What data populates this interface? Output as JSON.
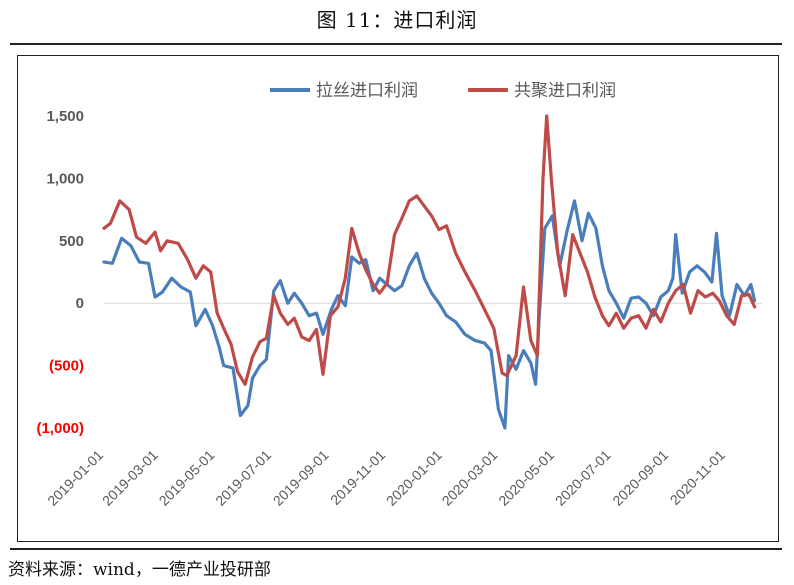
{
  "title": "图 11：进口利润",
  "source": "资料来源：wind，一德产业投研部",
  "colors": {
    "pp": "#4a7ebb",
    "pe": "#be4b48",
    "axis": "#d9d9d9",
    "negative_label": "#ff0000",
    "label": "#595959"
  },
  "chart_data": {
    "type": "line",
    "title": "",
    "xlabel": "",
    "ylabel": "",
    "ylim": [
      -1000,
      1500
    ],
    "yticks": [
      1500,
      1000,
      500,
      0,
      -500,
      -1000
    ],
    "ytick_labels": [
      "1,500",
      "1,000",
      "500",
      "0",
      "(500)",
      "(1,000)"
    ],
    "xticks": [
      "2019-01-01",
      "2019-03-01",
      "2019-05-01",
      "2019-07-01",
      "2019-09-01",
      "2019-11-01",
      "2020-01-01",
      "2020-03-01",
      "2020-05-01",
      "2020-07-01",
      "2020-09-01",
      "2020-11-01"
    ],
    "grid": false,
    "legend": "top",
    "series": [
      {
        "name": "拉丝进口利润",
        "color": "#4a7ebb",
        "points": [
          [
            "2019-01-01",
            330
          ],
          [
            "2019-01-10",
            320
          ],
          [
            "2019-01-20",
            520
          ],
          [
            "2019-01-30",
            460
          ],
          [
            "2019-02-08",
            330
          ],
          [
            "2019-02-18",
            320
          ],
          [
            "2019-02-25",
            50
          ],
          [
            "2019-03-05",
            90
          ],
          [
            "2019-03-15",
            200
          ],
          [
            "2019-03-25",
            130
          ],
          [
            "2019-04-04",
            90
          ],
          [
            "2019-04-10",
            -180
          ],
          [
            "2019-04-20",
            -50
          ],
          [
            "2019-04-28",
            -180
          ],
          [
            "2019-05-05",
            -350
          ],
          [
            "2019-05-10",
            -500
          ],
          [
            "2019-05-20",
            -520
          ],
          [
            "2019-05-28",
            -900
          ],
          [
            "2019-06-05",
            -820
          ],
          [
            "2019-06-10",
            -600
          ],
          [
            "2019-06-18",
            -500
          ],
          [
            "2019-06-25",
            -450
          ],
          [
            "2019-07-03",
            100
          ],
          [
            "2019-07-10",
            180
          ],
          [
            "2019-07-18",
            0
          ],
          [
            "2019-07-25",
            80
          ],
          [
            "2019-08-02",
            0
          ],
          [
            "2019-08-10",
            -100
          ],
          [
            "2019-08-18",
            -80
          ],
          [
            "2019-08-25",
            -250
          ],
          [
            "2019-09-03",
            -50
          ],
          [
            "2019-09-10",
            60
          ],
          [
            "2019-09-18",
            -20
          ],
          [
            "2019-09-25",
            370
          ],
          [
            "2019-10-03",
            320
          ],
          [
            "2019-10-10",
            350
          ],
          [
            "2019-10-18",
            100
          ],
          [
            "2019-10-25",
            200
          ],
          [
            "2019-11-02",
            150
          ],
          [
            "2019-11-10",
            100
          ],
          [
            "2019-11-18",
            140
          ],
          [
            "2019-11-26",
            300
          ],
          [
            "2019-12-04",
            400
          ],
          [
            "2019-12-12",
            200
          ],
          [
            "2019-12-20",
            80
          ],
          [
            "2019-12-28",
            0
          ],
          [
            "2020-01-05",
            -100
          ],
          [
            "2020-01-15",
            -150
          ],
          [
            "2020-01-25",
            -250
          ],
          [
            "2020-02-05",
            -300
          ],
          [
            "2020-02-15",
            -320
          ],
          [
            "2020-02-22",
            -380
          ],
          [
            "2020-03-01",
            -850
          ],
          [
            "2020-03-08",
            -1000
          ],
          [
            "2020-03-12",
            -420
          ],
          [
            "2020-03-20",
            -530
          ],
          [
            "2020-03-28",
            -380
          ],
          [
            "2020-04-05",
            -480
          ],
          [
            "2020-04-10",
            -650
          ],
          [
            "2020-04-14",
            -100
          ],
          [
            "2020-04-20",
            600
          ],
          [
            "2020-04-28",
            700
          ],
          [
            "2020-05-06",
            300
          ],
          [
            "2020-05-14",
            580
          ],
          [
            "2020-05-22",
            820
          ],
          [
            "2020-05-30",
            500
          ],
          [
            "2020-06-06",
            720
          ],
          [
            "2020-06-14",
            600
          ],
          [
            "2020-06-21",
            300
          ],
          [
            "2020-06-28",
            100
          ],
          [
            "2020-07-06",
            0
          ],
          [
            "2020-07-14",
            -120
          ],
          [
            "2020-07-22",
            40
          ],
          [
            "2020-07-30",
            50
          ],
          [
            "2020-08-07",
            0
          ],
          [
            "2020-08-15",
            -100
          ],
          [
            "2020-08-23",
            50
          ],
          [
            "2020-08-31",
            100
          ],
          [
            "2020-09-05",
            200
          ],
          [
            "2020-09-08",
            550
          ],
          [
            "2020-09-15",
            80
          ],
          [
            "2020-09-23",
            250
          ],
          [
            "2020-10-01",
            300
          ],
          [
            "2020-10-09",
            250
          ],
          [
            "2020-10-17",
            170
          ],
          [
            "2020-10-22",
            560
          ],
          [
            "2020-10-28",
            60
          ],
          [
            "2020-11-05",
            -100
          ],
          [
            "2020-11-13",
            150
          ],
          [
            "2020-11-21",
            60
          ],
          [
            "2020-11-28",
            150
          ],
          [
            "2020-12-02",
            20
          ]
        ]
      },
      {
        "name": "共聚进口利润",
        "color": "#be4b48",
        "points": [
          [
            "2019-01-01",
            600
          ],
          [
            "2019-01-08",
            640
          ],
          [
            "2019-01-18",
            820
          ],
          [
            "2019-01-28",
            750
          ],
          [
            "2019-02-05",
            530
          ],
          [
            "2019-02-15",
            480
          ],
          [
            "2019-02-25",
            570
          ],
          [
            "2019-03-03",
            420
          ],
          [
            "2019-03-10",
            500
          ],
          [
            "2019-03-22",
            480
          ],
          [
            "2019-04-01",
            350
          ],
          [
            "2019-04-10",
            200
          ],
          [
            "2019-04-18",
            300
          ],
          [
            "2019-04-26",
            250
          ],
          [
            "2019-05-03",
            -80
          ],
          [
            "2019-05-10",
            -200
          ],
          [
            "2019-05-18",
            -330
          ],
          [
            "2019-05-25",
            -550
          ],
          [
            "2019-06-02",
            -650
          ],
          [
            "2019-06-10",
            -430
          ],
          [
            "2019-06-18",
            -310
          ],
          [
            "2019-06-25",
            -280
          ],
          [
            "2019-07-03",
            60
          ],
          [
            "2019-07-10",
            -80
          ],
          [
            "2019-07-18",
            -170
          ],
          [
            "2019-07-25",
            -120
          ],
          [
            "2019-08-02",
            -270
          ],
          [
            "2019-08-10",
            -300
          ],
          [
            "2019-08-18",
            -210
          ],
          [
            "2019-08-25",
            -570
          ],
          [
            "2019-09-02",
            -100
          ],
          [
            "2019-09-10",
            -30
          ],
          [
            "2019-09-18",
            200
          ],
          [
            "2019-09-25",
            600
          ],
          [
            "2019-10-03",
            400
          ],
          [
            "2019-10-10",
            270
          ],
          [
            "2019-10-18",
            150
          ],
          [
            "2019-10-25",
            80
          ],
          [
            "2019-11-02",
            160
          ],
          [
            "2019-11-10",
            550
          ],
          [
            "2019-11-18",
            680
          ],
          [
            "2019-11-26",
            820
          ],
          [
            "2019-12-04",
            860
          ],
          [
            "2019-12-12",
            780
          ],
          [
            "2019-12-20",
            700
          ],
          [
            "2019-12-28",
            590
          ],
          [
            "2020-01-05",
            620
          ],
          [
            "2020-01-15",
            400
          ],
          [
            "2020-01-25",
            250
          ],
          [
            "2020-02-05",
            100
          ],
          [
            "2020-02-15",
            -50
          ],
          [
            "2020-02-25",
            -200
          ],
          [
            "2020-03-05",
            -560
          ],
          [
            "2020-03-10",
            -580
          ],
          [
            "2020-03-20",
            -420
          ],
          [
            "2020-03-28",
            130
          ],
          [
            "2020-04-05",
            -300
          ],
          [
            "2020-04-12",
            -420
          ],
          [
            "2020-04-18",
            1000
          ],
          [
            "2020-04-22",
            1500
          ],
          [
            "2020-04-27",
            1000
          ],
          [
            "2020-05-04",
            400
          ],
          [
            "2020-05-12",
            60
          ],
          [
            "2020-05-20",
            550
          ],
          [
            "2020-05-28",
            400
          ],
          [
            "2020-06-05",
            250
          ],
          [
            "2020-06-13",
            50
          ],
          [
            "2020-06-21",
            -100
          ],
          [
            "2020-06-28",
            -180
          ],
          [
            "2020-07-06",
            -80
          ],
          [
            "2020-07-14",
            -200
          ],
          [
            "2020-07-22",
            -120
          ],
          [
            "2020-07-30",
            -100
          ],
          [
            "2020-08-07",
            -200
          ],
          [
            "2020-08-15",
            -50
          ],
          [
            "2020-08-23",
            -150
          ],
          [
            "2020-08-31",
            0
          ],
          [
            "2020-09-08",
            100
          ],
          [
            "2020-09-16",
            150
          ],
          [
            "2020-09-24",
            -80
          ],
          [
            "2020-10-02",
            100
          ],
          [
            "2020-10-10",
            50
          ],
          [
            "2020-10-18",
            80
          ],
          [
            "2020-10-25",
            20
          ],
          [
            "2020-11-02",
            -100
          ],
          [
            "2020-11-10",
            -170
          ],
          [
            "2020-11-18",
            60
          ],
          [
            "2020-11-26",
            70
          ],
          [
            "2020-12-02",
            -30
          ]
        ]
      }
    ]
  }
}
